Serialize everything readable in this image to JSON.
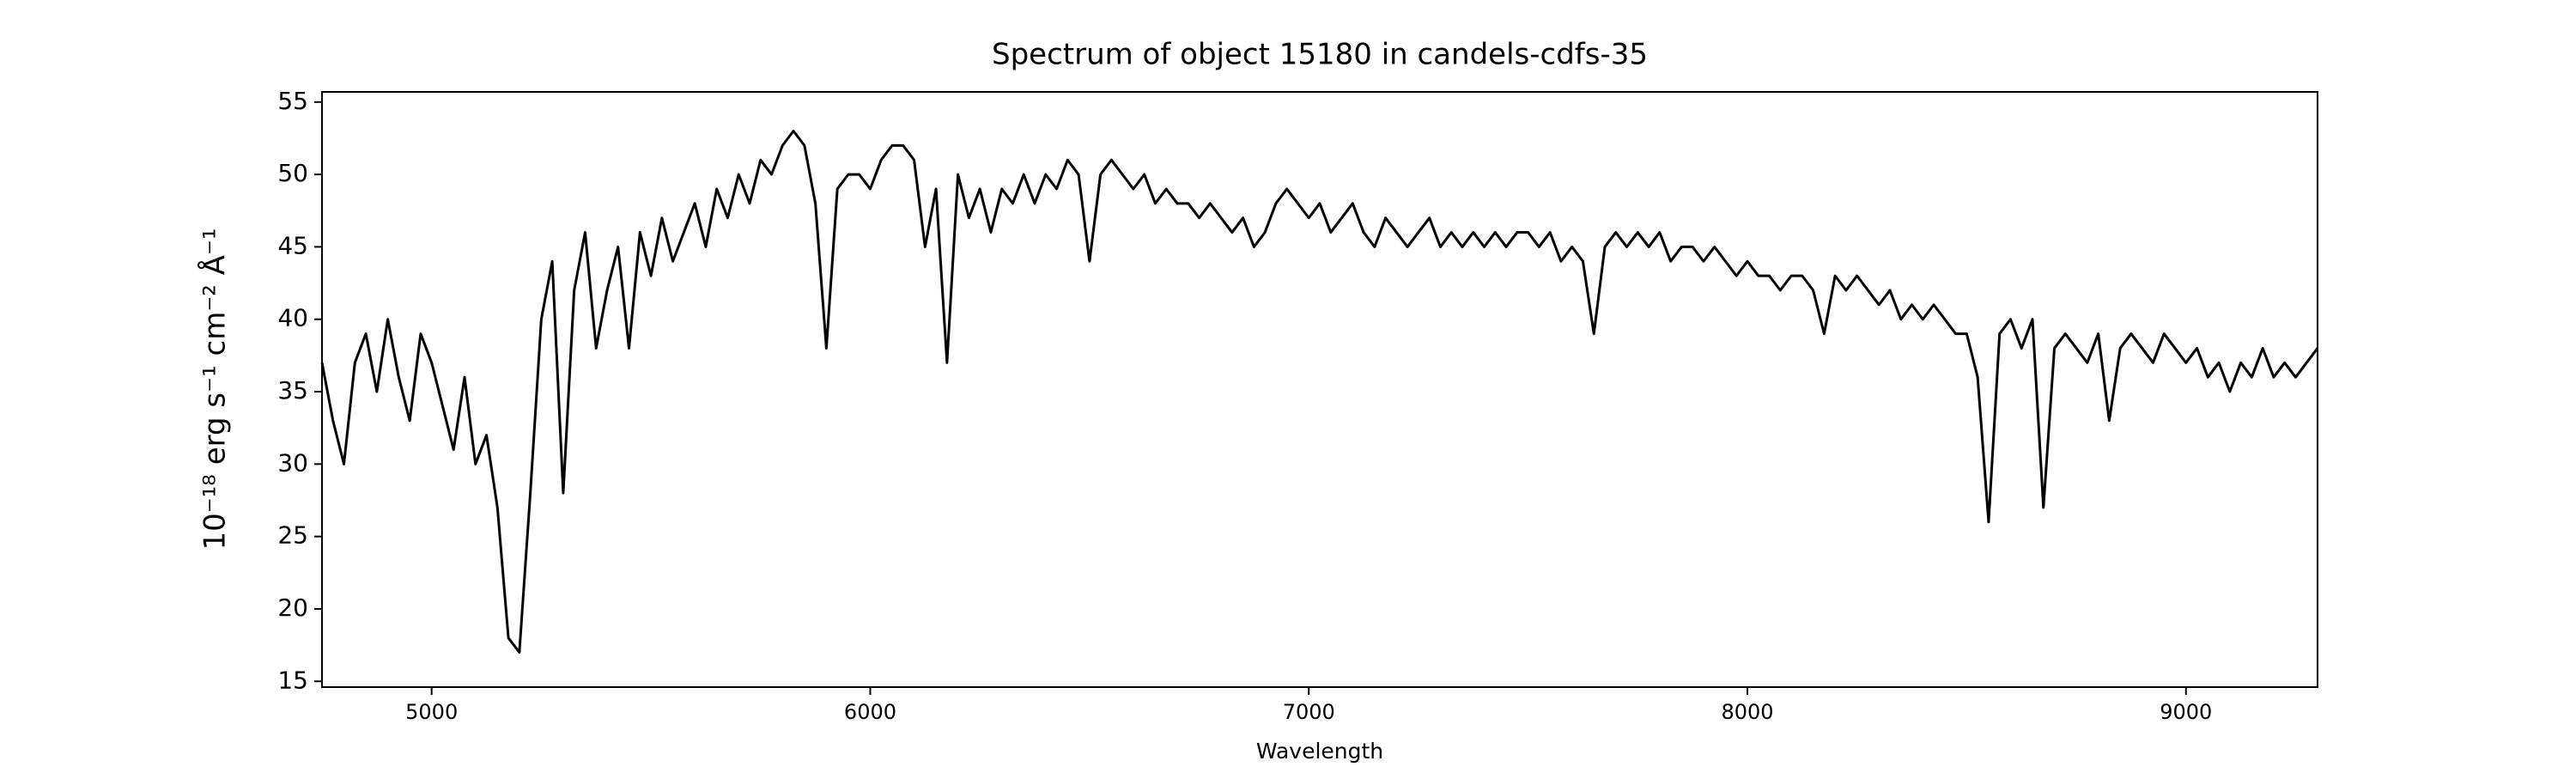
{
  "chart_data": {
    "type": "line",
    "title": "Spectrum of object 15180 in candels-cdfs-35",
    "x_label": "Wavelength",
    "y_label": "10⁻¹⁸ erg s⁻¹ cm⁻² Å⁻¹",
    "color": "#000000",
    "xlim": [
      4750,
      9300
    ],
    "ylim": [
      14.6,
      55.7
    ],
    "xticks": [
      5000,
      6000,
      7000,
      8000,
      9000
    ],
    "yticks": [
      15,
      20,
      25,
      30,
      35,
      40,
      45,
      50,
      55
    ],
    "x": [
      4750,
      4775,
      4800,
      4825,
      4850,
      4875,
      4900,
      4925,
      4950,
      4975,
      5000,
      5025,
      5050,
      5075,
      5100,
      5125,
      5150,
      5175,
      5200,
      5225,
      5250,
      5275,
      5300,
      5325,
      5350,
      5375,
      5400,
      5425,
      5450,
      5475,
      5500,
      5525,
      5550,
      5575,
      5600,
      5625,
      5650,
      5675,
      5700,
      5725,
      5750,
      5775,
      5800,
      5825,
      5850,
      5875,
      5900,
      5925,
      5950,
      5975,
      6000,
      6025,
      6050,
      6075,
      6100,
      6125,
      6150,
      6175,
      6200,
      6225,
      6250,
      6275,
      6300,
      6325,
      6350,
      6375,
      6400,
      6425,
      6450,
      6475,
      6500,
      6525,
      6550,
      6575,
      6600,
      6625,
      6650,
      6675,
      6700,
      6725,
      6750,
      6775,
      6800,
      6825,
      6850,
      6875,
      6900,
      6925,
      6950,
      6975,
      7000,
      7025,
      7050,
      7075,
      7100,
      7125,
      7150,
      7175,
      7200,
      7225,
      7250,
      7275,
      7300,
      7325,
      7350,
      7375,
      7400,
      7425,
      7450,
      7475,
      7500,
      7525,
      7550,
      7575,
      7600,
      7625,
      7650,
      7675,
      7700,
      7725,
      7750,
      7775,
      7800,
      7825,
      7850,
      7875,
      7900,
      7925,
      7950,
      7975,
      8000,
      8025,
      8050,
      8075,
      8100,
      8125,
      8150,
      8175,
      8200,
      8225,
      8250,
      8275,
      8300,
      8325,
      8350,
      8375,
      8400,
      8425,
      8450,
      8475,
      8500,
      8525,
      8550,
      8575,
      8600,
      8625,
      8650,
      8675,
      8700,
      8725,
      8750,
      8775,
      8800,
      8825,
      8850,
      8875,
      8900,
      8925,
      8950,
      8975,
      9000,
      9025,
      9050,
      9075,
      9100,
      9125,
      9150,
      9175,
      9200,
      9225,
      9250,
      9275,
      9300
    ],
    "values": [
      37,
      33,
      30,
      37,
      39,
      35,
      40,
      36,
      33,
      39,
      37,
      34,
      31,
      36,
      30,
      32,
      27,
      18,
      17,
      28,
      40,
      44,
      28,
      42,
      46,
      38,
      42,
      45,
      38,
      46,
      43,
      47,
      44,
      46,
      48,
      45,
      49,
      47,
      50,
      48,
      51,
      50,
      52,
      53,
      52,
      48,
      38,
      49,
      50,
      50,
      49,
      51,
      52,
      52,
      51,
      45,
      49,
      37,
      50,
      47,
      49,
      46,
      49,
      48,
      50,
      48,
      50,
      49,
      51,
      50,
      44,
      50,
      51,
      50,
      49,
      50,
      48,
      49,
      48,
      48,
      47,
      48,
      47,
      46,
      47,
      45,
      46,
      48,
      49,
      48,
      47,
      48,
      46,
      47,
      48,
      46,
      45,
      47,
      46,
      45,
      46,
      47,
      45,
      46,
      45,
      46,
      45,
      46,
      45,
      46,
      46,
      45,
      46,
      44,
      45,
      44,
      39,
      45,
      46,
      45,
      46,
      45,
      46,
      44,
      45,
      45,
      44,
      45,
      44,
      43,
      44,
      43,
      43,
      42,
      43,
      43,
      42,
      39,
      43,
      42,
      43,
      42,
      41,
      42,
      40,
      41,
      40,
      41,
      40,
      39,
      39,
      36,
      26,
      39,
      40,
      38,
      40,
      27,
      38,
      39,
      38,
      37,
      39,
      33,
      38,
      39,
      38,
      37,
      39,
      38,
      37,
      38,
      36,
      37,
      35,
      37,
      36,
      38,
      36,
      37,
      36,
      37,
      38
    ]
  }
}
